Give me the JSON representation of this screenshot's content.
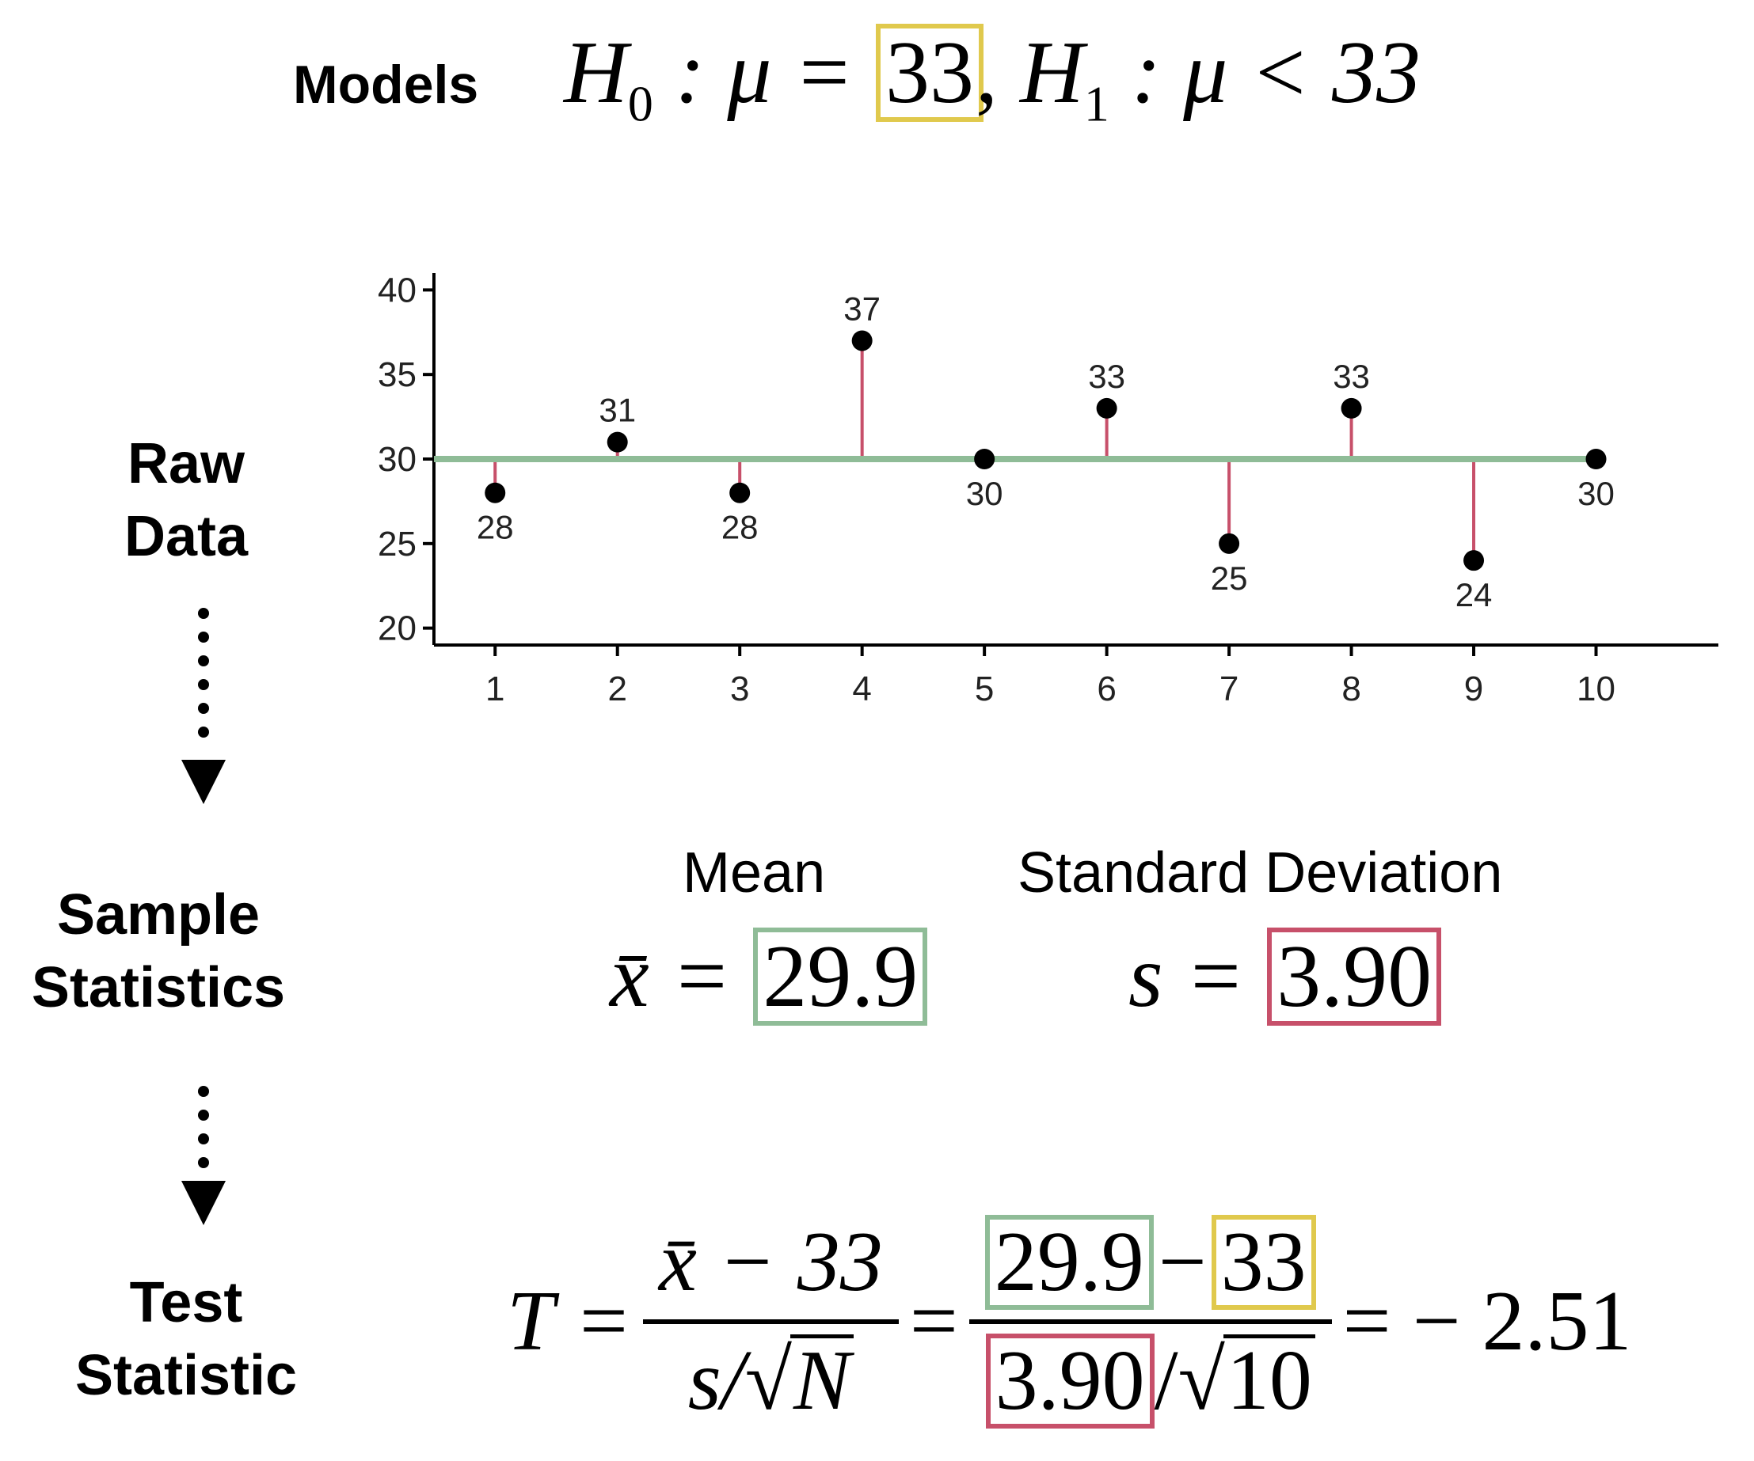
{
  "colors": {
    "green": "#8fbc97",
    "red": "#c7506a",
    "yellow": "#e0c94d",
    "axis": "#000000"
  },
  "header": {
    "models_label": "Models",
    "h0_prefix": "H",
    "h0_sub": "0",
    "h0_mid": ": μ =",
    "h0_value": "33",
    "comma": ",",
    "h1_prefix": "H",
    "h1_sub": "1",
    "h1_rest": ": μ < 33"
  },
  "stages": {
    "raw_data_line1": "Raw",
    "raw_data_line2": "Data",
    "sample_stats_line1": "Sample",
    "sample_stats_line2": "Statistics",
    "test_stat_line1": "Test",
    "test_stat_line2": "Statistic"
  },
  "chart_data": {
    "type": "scatter",
    "x": [
      1,
      2,
      3,
      4,
      5,
      6,
      7,
      8,
      9,
      10
    ],
    "y": [
      28,
      31,
      28,
      37,
      30,
      33,
      25,
      33,
      24,
      30
    ],
    "point_labels": [
      "28",
      "31",
      "28",
      "37",
      "30",
      "33",
      "25",
      "33",
      "24",
      "30"
    ],
    "reference_line": 30,
    "x_ticks": [
      "1",
      "2",
      "3",
      "4",
      "5",
      "6",
      "7",
      "8",
      "9",
      "10"
    ],
    "y_ticks": [
      "20",
      "25",
      "30",
      "35",
      "40"
    ],
    "xlim": [
      0.5,
      11
    ],
    "ylim": [
      19,
      41
    ],
    "title": "",
    "xlabel": "",
    "ylabel": ""
  },
  "statistics": {
    "mean_label": "Mean",
    "sd_label": "Standard Deviation",
    "mean_symbol": "x̄ =",
    "mean_value": "29.9",
    "sd_symbol": "s =",
    "sd_value": "3.90"
  },
  "formula": {
    "lhs": "T =",
    "num1": "x̄ − 33",
    "den1_s": "s/",
    "den1_root": "N",
    "eq": "=",
    "num2_mean": "29.9",
    "num2_minus": "−",
    "num2_mu": "33",
    "den2_sd": "3.90",
    "den2_slash": "/",
    "den2_root": "10",
    "result": "= − 2.51"
  }
}
